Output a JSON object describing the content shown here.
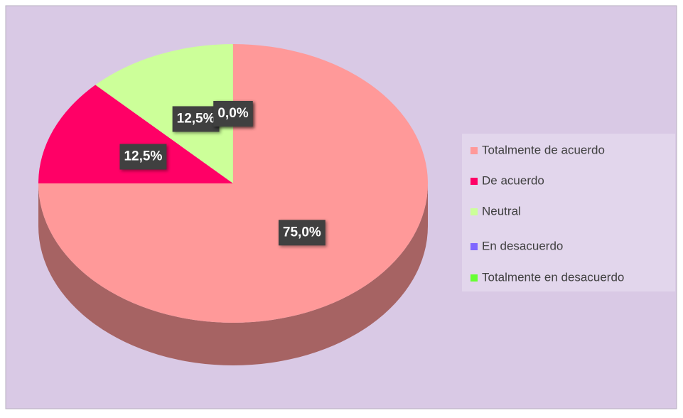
{
  "chart_data": {
    "type": "pie",
    "categories": [
      "Totalmente de acuerdo",
      "De acuerdo",
      "Neutral",
      "En desacuerdo",
      "Totalmente en desacuerdo"
    ],
    "values": [
      75,
      12.5,
      12.5,
      0,
      0
    ],
    "value_labels": [
      "75,0%",
      "12,5%",
      "12,5%",
      "0,0%",
      "0,0%"
    ],
    "colors": [
      "#ff9999",
      "#ff0066",
      "#ccff99",
      "#7f66ff",
      "#66ff33"
    ],
    "legend": "right"
  }
}
